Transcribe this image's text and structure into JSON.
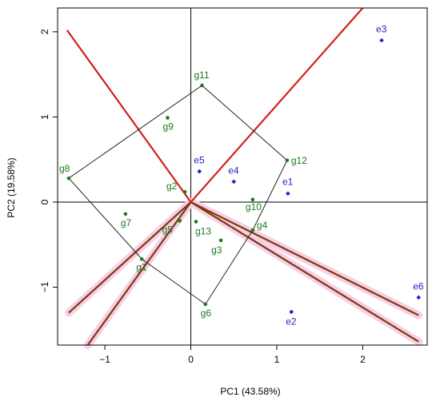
{
  "chart_data": {
    "type": "scatter",
    "xlabel": "PC1 (43.58%)",
    "ylabel": "PC2 (19.58%)",
    "xlim": [
      -1.55,
      2.75
    ],
    "ylim": [
      -1.68,
      2.28
    ],
    "xticks": [
      {
        "value": -1,
        "label": "−1"
      },
      {
        "value": 0,
        "label": "0"
      },
      {
        "value": 1,
        "label": "1"
      },
      {
        "value": 2,
        "label": "2"
      }
    ],
    "yticks": [
      {
        "value": -1,
        "label": "−1"
      },
      {
        "value": 0,
        "label": "0"
      },
      {
        "value": 1,
        "label": "1"
      },
      {
        "value": 2,
        "label": "2"
      }
    ],
    "grid": false,
    "colors": {
      "genotype": "#1a7a1a",
      "environment": "#1f1fbf",
      "polygon": "#222222",
      "sector_ray": "#d41e1e",
      "perpendicular_ray": "#7a3b0c",
      "halo": "#f7cfe6",
      "reference_lines": "#000000"
    },
    "genotypes": [
      {
        "label": "g1",
        "x": -0.57,
        "y": -0.67
      },
      {
        "label": "g2",
        "x": -0.07,
        "y": 0.12
      },
      {
        "label": "g3",
        "x": 0.35,
        "y": -0.45
      },
      {
        "label": "g4",
        "x": 0.72,
        "y": -0.33
      },
      {
        "label": "g5",
        "x": -0.13,
        "y": -0.22
      },
      {
        "label": "g6",
        "x": 0.17,
        "y": -1.2
      },
      {
        "label": "g7",
        "x": -0.76,
        "y": -0.14
      },
      {
        "label": "g8",
        "x": -1.42,
        "y": 0.28
      },
      {
        "label": "g9",
        "x": -0.27,
        "y": 0.99
      },
      {
        "label": "g10",
        "x": 0.72,
        "y": 0.03
      },
      {
        "label": "g11",
        "x": 0.13,
        "y": 1.37
      },
      {
        "label": "g12",
        "x": 1.12,
        "y": 0.49
      },
      {
        "label": "g13",
        "x": 0.06,
        "y": -0.23
      }
    ],
    "environments": [
      {
        "label": "e1",
        "x": 1.13,
        "y": 0.1
      },
      {
        "label": "e2",
        "x": 1.17,
        "y": -1.29
      },
      {
        "label": "e3",
        "x": 2.22,
        "y": 1.9
      },
      {
        "label": "e4",
        "x": 0.5,
        "y": 0.24
      },
      {
        "label": "e5",
        "x": 0.1,
        "y": 0.36
      },
      {
        "label": "e6",
        "x": 2.65,
        "y": -1.12
      }
    ],
    "polygon_order": [
      "g11",
      "g12",
      "g4",
      "g6",
      "g1",
      "g8"
    ],
    "sector_rays": [
      {
        "x": -1.44,
        "y": 2.02
      },
      {
        "x": 2.0,
        "y": 2.28
      }
    ],
    "perpendicular_rays": [
      {
        "x": -1.42,
        "y": -1.3
      },
      {
        "x": -1.2,
        "y": -1.68
      },
      {
        "x": 2.65,
        "y": -1.33
      },
      {
        "x": 2.65,
        "y": -1.64
      }
    ]
  }
}
